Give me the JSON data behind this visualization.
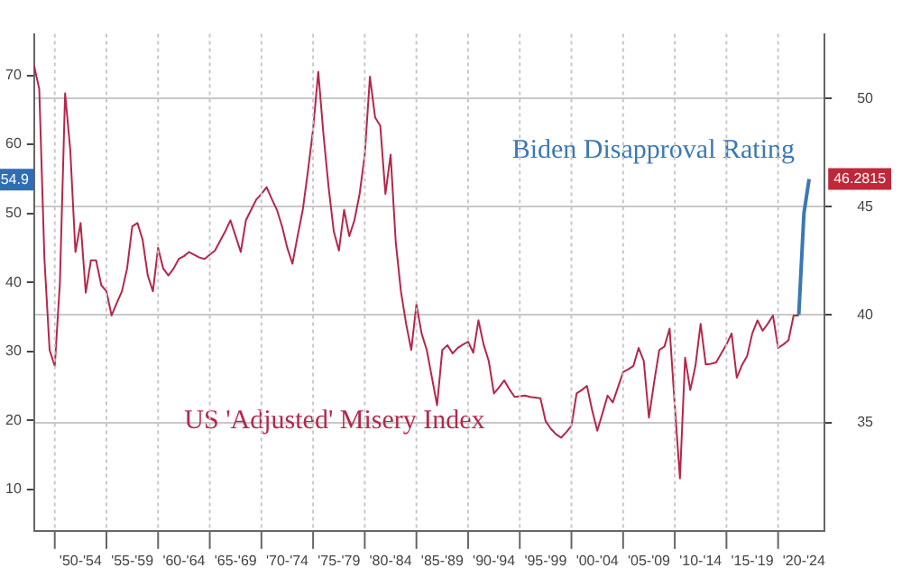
{
  "chart_data": {
    "type": "line",
    "categories": [
      null,
      null,
      null,
      null,
      null,
      null,
      null,
      null,
      null,
      "'50-'54",
      null,
      null,
      null,
      null,
      null,
      null,
      null,
      null,
      null,
      "'55-'59",
      null,
      null,
      null,
      null,
      null,
      null,
      null,
      null,
      null,
      "'60-'64",
      null,
      null,
      null,
      null,
      null,
      null,
      null,
      null,
      null,
      "'65-'69",
      null,
      null,
      null,
      null,
      null,
      null,
      null,
      null,
      null,
      "'70-'74",
      null,
      null,
      null,
      null,
      null,
      null,
      null,
      null,
      null,
      "'75-'79",
      null,
      null,
      null,
      null,
      null,
      null,
      null,
      null,
      null,
      "'80-'84",
      null,
      null,
      null,
      null,
      null,
      null,
      null,
      null,
      null,
      "'85-'89",
      null,
      null,
      null,
      null,
      null,
      null,
      null,
      null,
      null,
      "'90-'94",
      null,
      null,
      null,
      null,
      null,
      null,
      null,
      null,
      null,
      "'95-'99",
      null,
      null,
      null,
      null,
      null,
      null,
      null,
      null,
      null,
      "'00-'04",
      null,
      null,
      null,
      null,
      null,
      null,
      null,
      null,
      null,
      "'05-'09",
      null,
      null,
      null,
      null,
      null,
      null,
      null,
      null,
      null,
      "'10-'14",
      null,
      null,
      null,
      null,
      null,
      null,
      null,
      null,
      null,
      "'15-'19",
      null,
      null,
      null,
      null,
      null,
      null,
      null,
      null,
      null,
      "'20-'24",
      null,
      null,
      null,
      null
    ],
    "ylim": [
      4,
      76
    ],
    "yticks": [
      10,
      20,
      30,
      40,
      50,
      60,
      70
    ],
    "y2lim": [
      30,
      53
    ],
    "y2ticks": [
      35,
      40,
      45,
      50
    ],
    "grid": true,
    "legend": false,
    "annotations": [
      {
        "text": "54.9",
        "y": 54.9
      }
    ],
    "series": [
      {
        "name": "US 'Adjusted' Misery Index",
        "color": "#b5274a",
        "values": [
          71.4,
          68,
          43.4,
          30.2,
          27.9,
          40,
          67.4,
          59.2,
          44.4,
          48.6,
          38.5,
          43.2,
          43.2,
          39.6,
          38.7,
          35.2,
          37,
          38.7,
          42,
          48.1,
          48.6,
          46.2,
          41,
          38.7,
          45,
          42,
          41,
          42,
          43.4,
          43.8,
          44.4,
          44,
          43.6,
          43.4,
          44,
          44.6,
          46,
          47.4,
          49,
          46.7,
          44.4,
          49,
          50.5,
          52,
          52.8,
          53.8,
          52.1,
          50.5,
          48.1,
          45,
          42.7,
          46.7,
          50.5,
          56.1,
          62.2,
          70.5,
          61.5,
          53.8,
          47.4,
          44.6,
          50.5,
          46.7,
          49,
          52.8,
          58.5,
          69.8,
          63.9,
          62.7,
          52.8,
          58.5,
          45.8,
          38.7,
          34,
          30.2,
          36.8,
          32.6,
          30.2,
          26.2,
          22.2,
          30.2,
          30.9,
          29.7,
          30.5,
          31,
          31.4,
          29.8,
          34.5,
          31,
          28.6,
          23.9,
          24.8,
          25.8,
          24.5,
          23.4,
          23.5,
          23.6,
          23.4,
          23.3,
          23.2,
          19.9,
          18.8,
          18,
          17.5,
          18.3,
          19.2,
          23.9,
          24.4,
          25,
          21.5,
          18.5,
          21,
          23.6,
          22.6,
          24.8,
          27,
          27.4,
          27.9,
          30.5,
          28.6,
          20.4,
          25.5,
          30.2,
          30.7,
          33.3,
          22.2,
          11.6,
          29.1,
          24.4,
          27.9,
          34,
          28.1,
          28.2,
          28.4,
          29.7,
          31,
          32.6,
          26.2,
          28,
          29.3,
          32.6,
          34.5,
          33,
          34,
          35.2,
          30.5,
          31,
          31.6,
          35.2,
          35.2,
          null,
          null,
          null,
          null,
          null
        ]
      },
      {
        "name": "Biden Disapproval Rating",
        "color": "#3a78b5",
        "axis": "y2",
        "values": [
          null,
          null,
          null,
          null,
          null,
          null,
          null,
          null,
          null,
          null,
          null,
          null,
          null,
          null,
          null,
          null,
          null,
          null,
          null,
          null,
          null,
          null,
          null,
          null,
          null,
          null,
          null,
          null,
          null,
          null,
          null,
          null,
          null,
          null,
          null,
          null,
          null,
          null,
          null,
          null,
          null,
          null,
          null,
          null,
          null,
          null,
          null,
          null,
          null,
          null,
          null,
          null,
          null,
          null,
          null,
          null,
          null,
          null,
          null,
          null,
          null,
          null,
          null,
          null,
          null,
          null,
          null,
          null,
          null,
          null,
          null,
          null,
          null,
          null,
          null,
          null,
          null,
          null,
          null,
          null,
          null,
          null,
          null,
          null,
          null,
          null,
          null,
          null,
          null,
          null,
          null,
          null,
          null,
          null,
          null,
          null,
          null,
          null,
          null,
          null,
          null,
          null,
          null,
          null,
          null,
          null,
          null,
          null,
          null,
          null,
          null,
          null,
          null,
          null,
          null,
          null,
          null,
          null,
          null,
          null,
          null,
          null,
          null,
          null,
          null,
          null,
          null,
          null,
          null,
          null,
          null,
          null,
          null,
          null,
          null,
          null,
          null,
          null,
          null,
          null,
          null,
          null,
          null,
          null,
          null,
          null,
          null,
          null,
          40,
          44.7,
          46.2815,
          null,
          null,
          null
        ],
        "value_labels": [
          null,
          null,
          null,
          null,
          null,
          null,
          null,
          null,
          null,
          null,
          null,
          null,
          null,
          null,
          null,
          null,
          null,
          null,
          null,
          null,
          null,
          null,
          null,
          null,
          null,
          null,
          null,
          null,
          null,
          null,
          null,
          null,
          null,
          null,
          null,
          null,
          null,
          null,
          null,
          null,
          null,
          null,
          null,
          null,
          null,
          null,
          null,
          null,
          null,
          null,
          null,
          null,
          null,
          null,
          null,
          null,
          null,
          null,
          null,
          null,
          null,
          null,
          null,
          null,
          null,
          null,
          null,
          null,
          null,
          null,
          null,
          null,
          null,
          null,
          null,
          null,
          null,
          null,
          null,
          null,
          null,
          null,
          null,
          null,
          null,
          null,
          null,
          null,
          null,
          null,
          null,
          null,
          null,
          null,
          null,
          null,
          null,
          null,
          null,
          null,
          null,
          null,
          null,
          null,
          null,
          null,
          null,
          null,
          null,
          null,
          null,
          null,
          null,
          null,
          null,
          null,
          null,
          null,
          null,
          null,
          null,
          null,
          null,
          null,
          null,
          null,
          null,
          null,
          null,
          null,
          null,
          null,
          null,
          null,
          null,
          null,
          null,
          null,
          null,
          null,
          null,
          null,
          null,
          null,
          null,
          null,
          null,
          null,
          null,
          null,
          "46.2815",
          null,
          null,
          null
        ]
      }
    ]
  }
}
